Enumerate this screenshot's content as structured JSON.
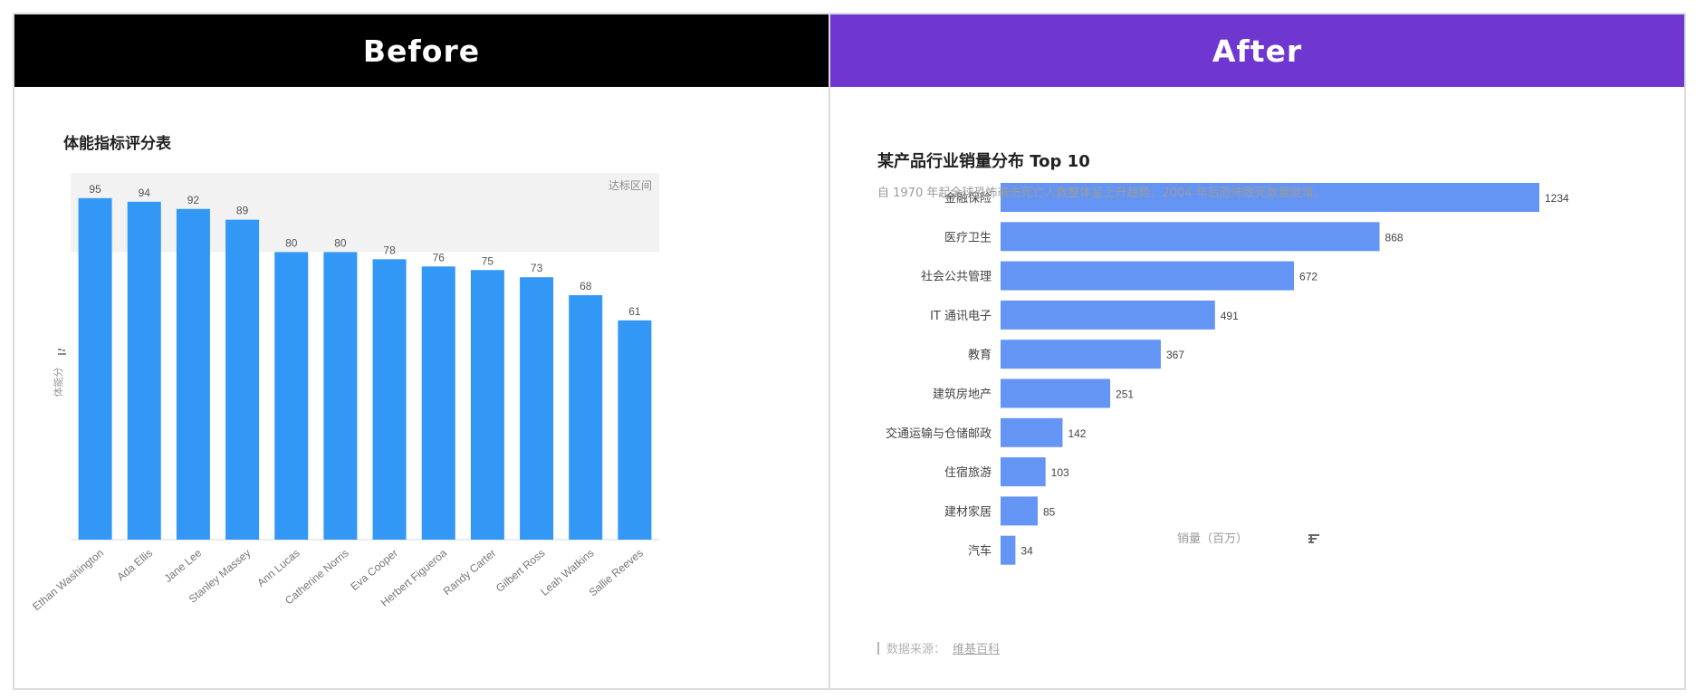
{
  "colors": {
    "before_header": "#000000",
    "after_header": "#6f37cf",
    "left_bar": "#3397f6",
    "right_bar": "#6595f4",
    "band": "#f2f2f2"
  },
  "left_panel": {
    "header": "Before",
    "title": "体能指标评分表"
  },
  "right_panel": {
    "header": "After",
    "title": "某产品行业销量分布 Top 10",
    "subtitle": "自 1970 年起全球恐怖袭击死亡人数整体呈上升趋势，2004 年后恐怖致死数量陡增。",
    "source_label": "数据来源：",
    "source_link": "维基百科"
  },
  "chart_data": [
    {
      "type": "bar",
      "title": "体能指标评分表",
      "ylabel": "体能分",
      "categories": [
        "Ethan Washington",
        "Ada Ellis",
        "Jane Lee",
        "Stanley Massey",
        "Ann Lucas",
        "Catherine Norris",
        "Eva Cooper",
        "Herbert Figueroa",
        "Randy Carter",
        "Gilbert Ross",
        "Leah Watkins",
        "Sallie Reeves"
      ],
      "values": [
        95,
        94,
        92,
        89,
        80,
        80,
        78,
        76,
        75,
        73,
        68,
        61
      ],
      "ylim": [
        0,
        100
      ],
      "annotation": {
        "label": "达标区间",
        "range": [
          80,
          100
        ]
      },
      "grid": false
    },
    {
      "type": "bar",
      "orientation": "horizontal",
      "title": "某产品行业销量分布 Top 10",
      "xlabel": "销量（百万）",
      "categories": [
        "金融保险",
        "医疗卫生",
        "社会公共管理",
        "IT 通讯电子",
        "教育",
        "建筑房地产",
        "交通运输与仓储邮政",
        "住宿旅游",
        "建材家居",
        "汽车"
      ],
      "values": [
        1234,
        868,
        672,
        491,
        367,
        251,
        142,
        103,
        85,
        34
      ],
      "xlim": [
        0,
        1234
      ],
      "grid": false
    }
  ]
}
